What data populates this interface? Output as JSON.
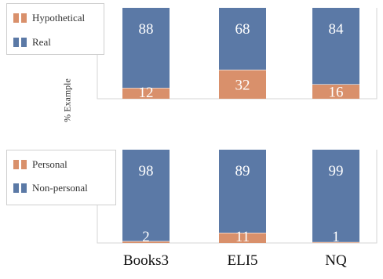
{
  "colors": {
    "hypothetical": "#d9906b",
    "real": "#5b79a6",
    "frame": "#d6d6d6"
  },
  "chart_data": [
    {
      "type": "bar",
      "stacked": true,
      "categories": [
        "Books3",
        "ELI5",
        "NQ"
      ],
      "ylabel": "% Example",
      "ylim": [
        0,
        100
      ],
      "legend_position": "top-left",
      "series": [
        {
          "name": "Hypothetical",
          "values": [
            12,
            32,
            16
          ],
          "color": "#d9906b"
        },
        {
          "name": "Real",
          "values": [
            88,
            68,
            84
          ],
          "color": "#5b79a6"
        }
      ]
    },
    {
      "type": "bar",
      "stacked": true,
      "categories": [
        "Books3",
        "ELI5",
        "NQ"
      ],
      "ylim": [
        0,
        100
      ],
      "legend_position": "top-left",
      "series": [
        {
          "name": "Personal",
          "values": [
            2,
            11,
            1
          ],
          "color": "#d9906b"
        },
        {
          "name": "Non-personal",
          "values": [
            98,
            89,
            99
          ],
          "color": "#5b79a6"
        }
      ]
    }
  ]
}
